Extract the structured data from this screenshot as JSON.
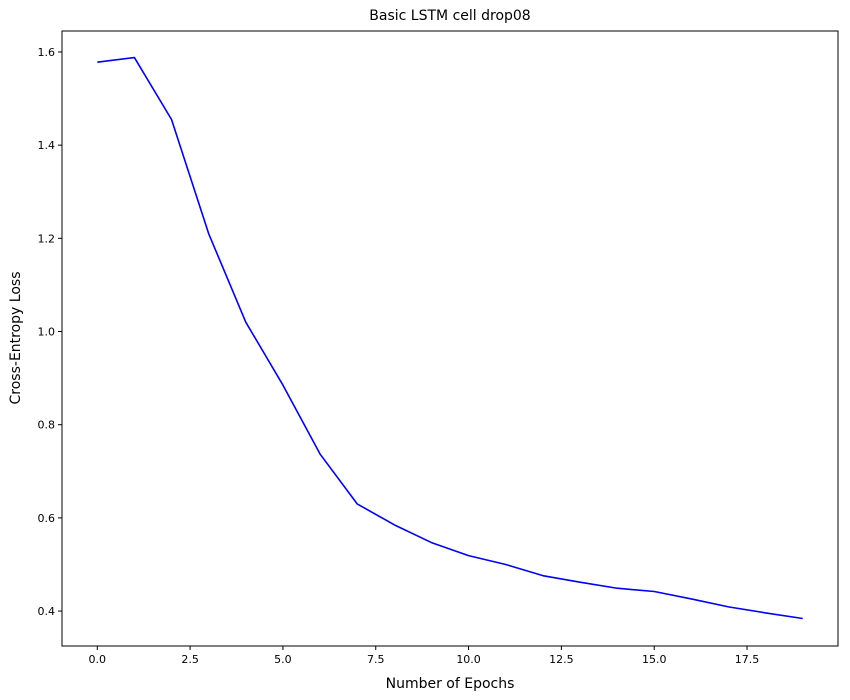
{
  "chart_data": {
    "type": "line",
    "title": "Basic LSTM cell drop08",
    "xlabel": "Number of Epochs",
    "ylabel": "Cross-Entropy Loss",
    "xlim": [
      -0.95,
      19.95
    ],
    "ylim": [
      0.325,
      1.645
    ],
    "xticks": [
      0.0,
      2.5,
      5.0,
      7.5,
      10.0,
      12.5,
      15.0,
      17.5
    ],
    "xtick_labels": [
      "0.0",
      "2.5",
      "5.0",
      "7.5",
      "10.0",
      "12.5",
      "15.0",
      "17.5"
    ],
    "yticks": [
      0.4,
      0.6,
      0.8,
      1.0,
      1.2,
      1.4,
      1.6
    ],
    "ytick_labels": [
      "0.4",
      "0.6",
      "0.8",
      "1.0",
      "1.2",
      "1.4",
      "1.6"
    ],
    "grid": false,
    "series": [
      {
        "color": "#0000ff",
        "x": [
          0,
          1,
          2,
          3,
          4,
          5,
          6,
          7,
          8,
          9,
          10,
          11,
          12,
          13,
          14,
          15,
          16,
          17,
          18,
          19
        ],
        "y": [
          1.578,
          1.588,
          1.455,
          1.21,
          1.02,
          0.885,
          0.737,
          0.63,
          0.585,
          0.547,
          0.519,
          0.5,
          0.476,
          0.462,
          0.449,
          0.442,
          0.426,
          0.409,
          0.396,
          0.384
        ]
      }
    ]
  }
}
